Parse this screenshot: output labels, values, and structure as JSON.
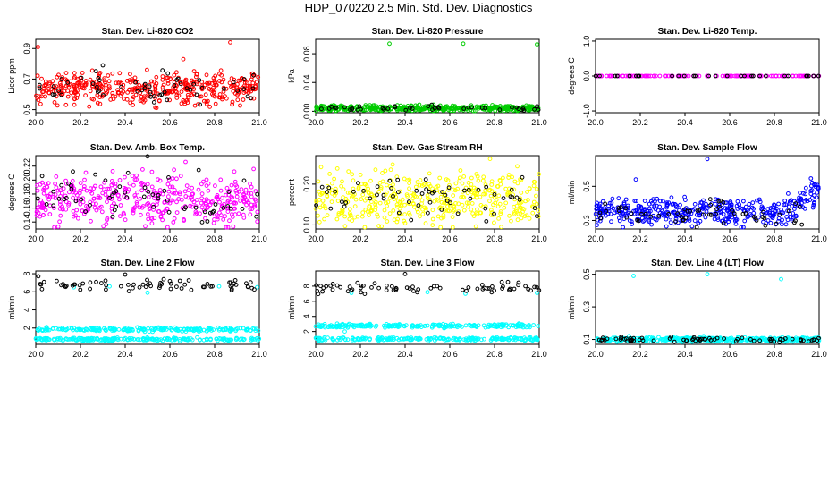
{
  "page": {
    "title": "HDP_070220  2.5 Min. Std. Dev. Diagnostics"
  },
  "chart_data": [
    {
      "type": "scatter",
      "title": "Stan. Dev. Li-820 CO2",
      "ylabel": "Licor ppm",
      "xlim": [
        20.0,
        21.0
      ],
      "ylim": [
        0.48,
        0.96
      ],
      "xticks": [
        "20.0",
        "20.2",
        "20.4",
        "20.6",
        "20.8",
        "21.0"
      ],
      "yticks": [
        "0.5",
        "0.7",
        "0.9"
      ],
      "series": [
        {
          "name": "main",
          "color": "#ff0000",
          "count": 420,
          "center": 0.64,
          "spread": 0.05,
          "outliers": [
            [
              20.01,
              0.91
            ],
            [
              20.87,
              0.94
            ],
            [
              20.88,
              0.55
            ],
            [
              20.66,
              0.83
            ]
          ]
        },
        {
          "name": "flagged",
          "color": "#000000",
          "count": 55,
          "center": 0.64,
          "spread": 0.05,
          "outliers": [
            [
              20.3,
              0.79
            ]
          ]
        }
      ]
    },
    {
      "type": "scatter",
      "title": "Stan. Dev. Li-820 Pressure",
      "ylabel": "kPa",
      "xlim": [
        20.0,
        21.0
      ],
      "ylim": [
        -0.002,
        0.1
      ],
      "xticks": [
        "20.0",
        "20.2",
        "20.4",
        "20.6",
        "20.8",
        "21.0"
      ],
      "yticks": [
        "0.00",
        "0.04",
        "0.08"
      ],
      "series": [
        {
          "name": "main",
          "color": "#00cc00",
          "count": 420,
          "center": 0.004,
          "spread": 0.002,
          "outliers": [
            [
              20.33,
              0.094
            ],
            [
              20.66,
              0.094
            ],
            [
              20.99,
              0.093
            ]
          ]
        },
        {
          "name": "flagged",
          "color": "#000000",
          "count": 40,
          "center": 0.004,
          "spread": 0.002,
          "outliers": [
            [
              20.99,
              0.007
            ]
          ]
        }
      ]
    },
    {
      "type": "scatter",
      "title": "Stan. Dev. Li-820 Temp.",
      "ylabel": "degrees C",
      "xlim": [
        20.0,
        21.0
      ],
      "ylim": [
        -1.05,
        1.05
      ],
      "xticks": [
        "20.0",
        "20.2",
        "20.4",
        "20.6",
        "20.8",
        "21.0"
      ],
      "yticks": [
        "-1.0",
        "0.0",
        "1.0"
      ],
      "series": [
        {
          "name": "main",
          "color": "#ff00ff",
          "count": 120,
          "center": 0.0,
          "spread": 0.0,
          "outliers": []
        },
        {
          "name": "flagged",
          "color": "#000000",
          "count": 30,
          "center": 0.0,
          "spread": 0.0,
          "outliers": []
        }
      ]
    },
    {
      "type": "scatter",
      "title": "Stan. Dev. Amb. Box Temp.",
      "ylabel": "degrees C",
      "xlim": [
        20.0,
        21.0
      ],
      "ylim": [
        0.13,
        0.235
      ],
      "xticks": [
        "20.0",
        "20.2",
        "20.4",
        "20.6",
        "20.8",
        "21.0"
      ],
      "yticks": [
        "0.14",
        "0.16",
        "0.18",
        "0.20",
        "0.22"
      ],
      "series": [
        {
          "name": "main",
          "color": "#ff00ff",
          "count": 420,
          "center": 0.172,
          "spread": 0.018,
          "outliers": [
            [
              20.67,
              0.226
            ],
            [
              20.49,
              0.134
            ]
          ]
        },
        {
          "name": "flagged",
          "color": "#000000",
          "count": 60,
          "center": 0.172,
          "spread": 0.018,
          "outliers": [
            [
              20.5,
              0.234
            ]
          ]
        }
      ]
    },
    {
      "type": "scatter",
      "title": "Stan. Dev. Gas Stream RH",
      "ylabel": "percent",
      "xlim": [
        20.0,
        21.0
      ],
      "ylim": [
        0.09,
        0.27
      ],
      "xticks": [
        "20.0",
        "20.2",
        "20.4",
        "20.6",
        "20.8",
        "21.0"
      ],
      "yticks": [
        "0.10",
        "0.20"
      ],
      "series": [
        {
          "name": "main",
          "color": "#ffff00",
          "count": 420,
          "center": 0.165,
          "spread": 0.032,
          "outliers": [
            [
              20.78,
              0.262
            ]
          ]
        },
        {
          "name": "flagged",
          "color": "#000000",
          "count": 60,
          "center": 0.165,
          "spread": 0.03,
          "outliers": []
        }
      ]
    },
    {
      "type": "scatter",
      "title": "Stan. Dev. Sample Flow",
      "ylabel": "ml/min",
      "xlim": [
        20.0,
        21.0
      ],
      "ylim": [
        0.25,
        0.68
      ],
      "xticks": [
        "20.0",
        "20.2",
        "20.4",
        "20.6",
        "20.8",
        "21.0"
      ],
      "yticks": [
        "0.3",
        "0.5"
      ],
      "series": [
        {
          "name": "main",
          "color": "#0000ff",
          "count": 420,
          "center": 0.35,
          "spread": 0.04,
          "outliers": [
            [
              20.5,
              0.66
            ],
            [
              20.18,
              0.54
            ]
          ]
        },
        {
          "name": "flagged",
          "color": "#000000",
          "count": 60,
          "center": 0.35,
          "spread": 0.04,
          "outliers": []
        }
      ]
    },
    {
      "type": "scatter",
      "title": "Stan. Dev. Line 2 Flow",
      "ylabel": "ml/min",
      "xlim": [
        20.0,
        21.0
      ],
      "ylim": [
        0.2,
        8.3
      ],
      "xticks": [
        "20.0",
        "20.2",
        "20.4",
        "20.6",
        "20.8",
        "21.0"
      ],
      "yticks": [
        "2",
        "4",
        "6",
        "8"
      ],
      "series": [
        {
          "name": "low band",
          "color": "#00ffff",
          "count": 220,
          "center": 0.75,
          "spread": 0.08,
          "outliers": []
        },
        {
          "name": "upper band",
          "color": "#00ffff",
          "count": 220,
          "center": 1.85,
          "spread": 0.1,
          "outliers": [
            [
              20.17,
              6.5
            ],
            [
              20.5,
              5.9
            ],
            [
              20.82,
              6.6
            ],
            [
              20.99,
              6.5
            ],
            [
              20.33,
              6.6
            ]
          ]
        },
        {
          "name": "flagged",
          "color": "#000000",
          "count": 70,
          "center": 6.8,
          "spread": 0.35,
          "outliers": [
            [
              20.4,
              7.9
            ]
          ]
        }
      ]
    },
    {
      "type": "scatter",
      "title": "Stan. Dev. Line 3 Flow",
      "ylabel": "ml/min",
      "xlim": [
        20.0,
        21.0
      ],
      "ylim": [
        0.3,
        10.0
      ],
      "xticks": [
        "20.0",
        "20.2",
        "20.4",
        "20.6",
        "20.8",
        "21.0"
      ],
      "yticks": [
        "2",
        "4",
        "6",
        "8"
      ],
      "series": [
        {
          "name": "low band",
          "color": "#00ffff",
          "count": 220,
          "center": 1.0,
          "spread": 0.1,
          "outliers": [
            [
              20.13,
              2.0
            ]
          ]
        },
        {
          "name": "upper band",
          "color": "#00ffff",
          "count": 220,
          "center": 2.75,
          "spread": 0.12,
          "outliers": [
            [
              20.16,
              7.1
            ],
            [
              20.67,
              7.0
            ],
            [
              20.99,
              7.1
            ],
            [
              20.5,
              7.2
            ]
          ]
        },
        {
          "name": "flagged",
          "color": "#000000",
          "count": 70,
          "center": 7.7,
          "spread": 0.35,
          "outliers": [
            [
              20.4,
              9.6
            ]
          ]
        }
      ]
    },
    {
      "type": "scatter",
      "title": "Stan. Dev. Line 4 (LT) Flow",
      "ylabel": "ml/min",
      "xlim": [
        20.0,
        21.0
      ],
      "ylim": [
        0.07,
        0.52
      ],
      "xticks": [
        "20.0",
        "20.2",
        "20.4",
        "20.6",
        "20.8",
        "21.0"
      ],
      "yticks": [
        "0.1",
        "0.3",
        "0.5"
      ],
      "series": [
        {
          "name": "main",
          "color": "#00ffff",
          "count": 420,
          "center": 0.1,
          "spread": 0.007,
          "outliers": [
            [
              20.17,
              0.49
            ],
            [
              20.5,
              0.5
            ],
            [
              20.83,
              0.47
            ]
          ]
        },
        {
          "name": "flagged",
          "color": "#000000",
          "count": 70,
          "center": 0.1,
          "spread": 0.008,
          "outliers": []
        }
      ]
    }
  ]
}
